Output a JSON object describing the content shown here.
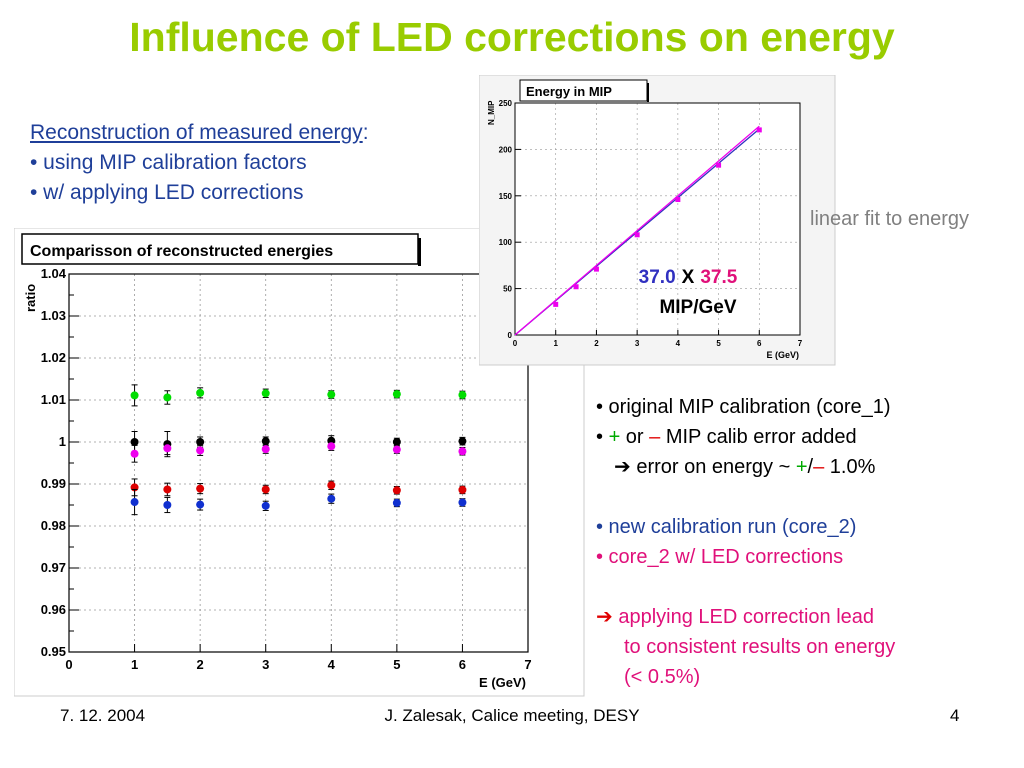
{
  "title": "Influence of LED corrections on energy",
  "left": {
    "heading": "Reconstruction of measured energy",
    "colon": ":",
    "bullet1": "• using MIP calibration factors",
    "bullet2": "• w/ applying LED corrections"
  },
  "right": {
    "b1": "• original MIP calibration (core_1)",
    "b2_pre": "• ",
    "b2_plus": "+",
    "b2_or": " or ",
    "b2_minus": "–",
    "b2_post": " MIP calib error added",
    "b3_pre": "  ➔ error on energy ~ ",
    "b3_plus": "+",
    "b3_slash": "/",
    "b3_minus": "–",
    "b3_post": " 1.0%",
    "b4": "• new calibration run (core_2)",
    "b5": "• core_2 w/ LED corrections",
    "b6_arrow": "➔",
    "b6_line1": " applying LED correction lead",
    "b6_line2": "to consistent results on energy",
    "b6_line3": "(< 0.5%)"
  },
  "linear_fit_note": "linear fit to energy",
  "footer": {
    "date": "7. 12. 2004",
    "meeting": "J. Zalesak, Calice meeting, DESY",
    "page": "4"
  },
  "colors": {
    "title": "#99cc00",
    "core1": "#000000",
    "core1_plus": "#00dd00",
    "core1_minus": "#dd0000",
    "core2": "#1030d0",
    "core2_led": "#ee00ee"
  },
  "chart_data": [
    {
      "type": "scatter",
      "title": "Comparisson of reconstructed energies",
      "xlabel": "E (GeV)",
      "ylabel": "ratio",
      "xlim": [
        0,
        7
      ],
      "ylim": [
        0.95,
        1.04
      ],
      "xticks": [
        "0",
        "1",
        "2",
        "3",
        "4",
        "5",
        "6",
        "7"
      ],
      "yticks": [
        "0.95",
        "0.96",
        "0.97",
        "0.98",
        "0.99",
        "1",
        "1.01",
        "1.02",
        "1.03",
        "1.04"
      ],
      "grid": true,
      "x": [
        1,
        1.5,
        2,
        3,
        4,
        5,
        6
      ],
      "series": [
        {
          "name": "core_1 +",
          "color": "#00dd00",
          "values": [
            1.0111,
            1.0106,
            1.0117,
            1.0116,
            1.0113,
            1.0114,
            1.0112
          ],
          "err": [
            0.0025,
            0.0016,
            0.0012,
            0.001,
            0.0009,
            0.0009,
            0.0009
          ]
        },
        {
          "name": "core_1",
          "color": "#000000",
          "values": [
            1.0,
            0.9995,
            1.0,
            1.0002,
            1.0003,
            1.0,
            1.0002
          ],
          "err": [
            0.0025,
            0.003,
            0.0012,
            0.001,
            0.0012,
            0.0009,
            0.0009
          ]
        },
        {
          "name": "core_2 LED",
          "color": "#ee00ee",
          "values": [
            0.9972,
            0.9985,
            0.998,
            0.9983,
            0.999,
            0.9982,
            0.9978
          ],
          "err": [
            0.002,
            0.0015,
            0.0012,
            0.001,
            0.001,
            0.0009,
            0.0009
          ]
        },
        {
          "name": "core_1 -",
          "color": "#dd0000",
          "values": [
            0.9892,
            0.9887,
            0.9889,
            0.9887,
            0.9897,
            0.9885,
            0.9886
          ],
          "err": [
            0.002,
            0.0015,
            0.0012,
            0.001,
            0.001,
            0.0009,
            0.0009
          ]
        },
        {
          "name": "core_2",
          "color": "#1030d0",
          "values": [
            0.9857,
            0.985,
            0.9851,
            0.9848,
            0.9865,
            0.9855,
            0.9856
          ],
          "err": [
            0.003,
            0.0018,
            0.0013,
            0.0011,
            0.0011,
            0.0009,
            0.0009
          ]
        }
      ]
    },
    {
      "type": "line",
      "title": "Energy in MIP",
      "xlabel": "E (GeV)",
      "ylabel": "N_MIP",
      "xlim": [
        0,
        7
      ],
      "ylim": [
        0,
        250
      ],
      "xticks": [
        "0",
        "1",
        "2",
        "3",
        "4",
        "5",
        "6",
        "7"
      ],
      "yticks": [
        "0",
        "50",
        "100",
        "150",
        "200",
        "250"
      ],
      "grid": true,
      "x": [
        1,
        1.5,
        2,
        3,
        4,
        5,
        6
      ],
      "points": [
        33,
        52,
        71,
        108,
        146,
        183,
        221
      ],
      "fits": [
        {
          "slope": 37.0,
          "color": "#3030c0"
        },
        {
          "slope": 37.5,
          "color": "#ee00ee"
        }
      ],
      "annotation": {
        "v1": "37.0",
        "x": "X",
        "v2": "37.5",
        "unit": "MIP/GeV"
      }
    }
  ]
}
